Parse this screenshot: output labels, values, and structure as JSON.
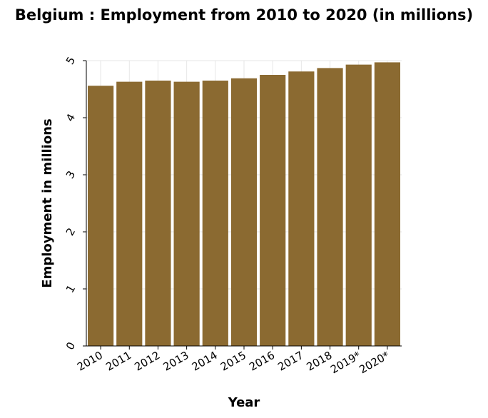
{
  "chart_data": {
    "type": "bar",
    "title": "Belgium : Employment from 2010 to 2020 (in millions)",
    "xlabel": "Year",
    "ylabel": "Employment in millions",
    "categories": [
      "2010",
      "2011",
      "2012",
      "2013",
      "2014",
      "2015",
      "2016",
      "2017",
      "2018",
      "2019*",
      "2020*"
    ],
    "values": [
      4.56,
      4.63,
      4.65,
      4.63,
      4.65,
      4.69,
      4.75,
      4.81,
      4.87,
      4.93,
      4.97
    ],
    "ylim": [
      0,
      5
    ],
    "yticks": [
      "0",
      "1",
      "2",
      "3",
      "4",
      "5"
    ],
    "grid": true,
    "colors": {
      "bar": "#8b6a31",
      "background": "#ffffff",
      "grid": "#e6e6e6",
      "axis": "#000000"
    }
  }
}
